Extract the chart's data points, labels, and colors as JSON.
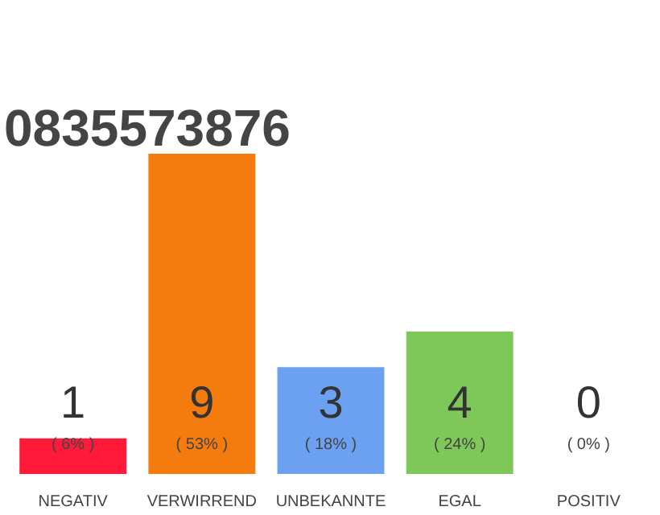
{
  "chart_data": {
    "type": "bar",
    "title": "0835573876",
    "categories": [
      "NEGATIV",
      "VERWIRREND",
      "UNBEKANNTE",
      "EGAL",
      "POSITIV"
    ],
    "values": [
      1,
      9,
      3,
      4,
      0
    ],
    "colors": [
      "#ff1a3a",
      "#f47c0f",
      "#6ca0f0",
      "#7ec85a",
      "#e0e0e0"
    ],
    "data_labels": true,
    "annotations": [
      "( 6% )",
      "( 53% )",
      "( 18% )",
      "( 24% )",
      "( 0% )"
    ]
  }
}
